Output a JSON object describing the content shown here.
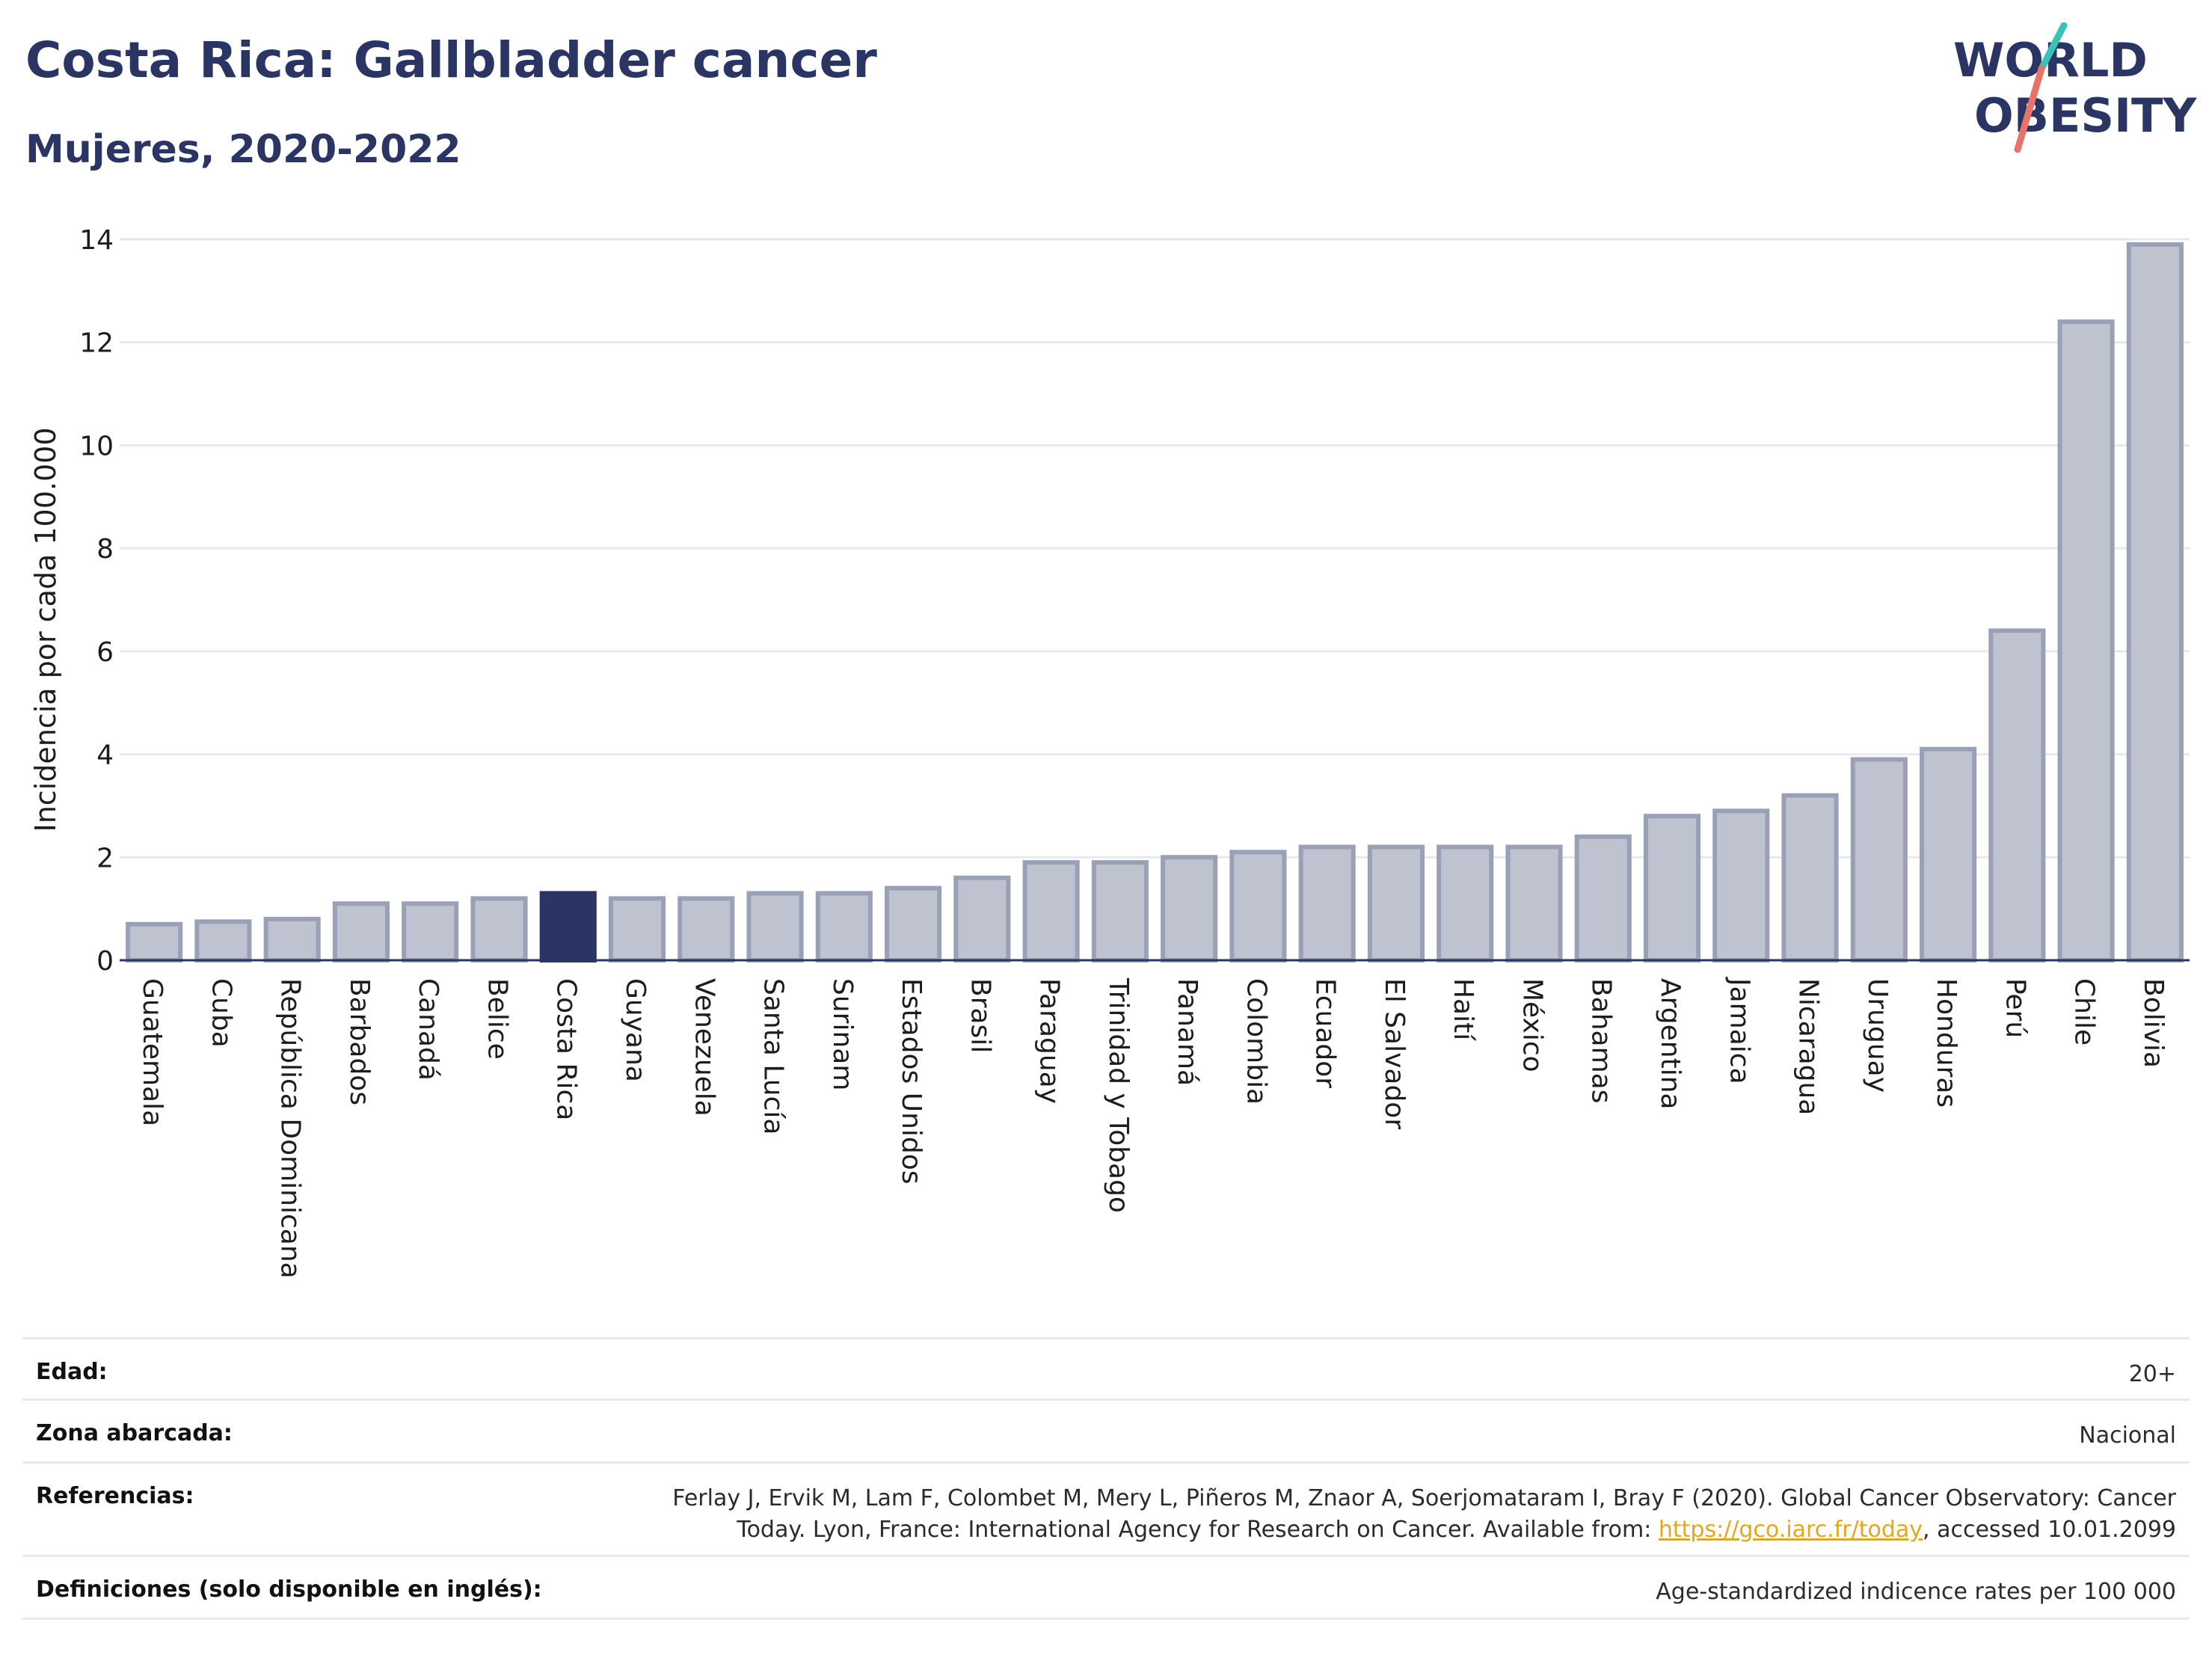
{
  "header": {
    "title": "Costa Rica: Gallbladder cancer",
    "subtitle": "Mujeres, 2020-2022"
  },
  "logo": {
    "line1": "WORLD",
    "line2": "OBESITY",
    "colors": {
      "text": "#2a3563",
      "slash_top": "#3cc0b8",
      "slash_bottom": "#e8736a"
    }
  },
  "chart_data": {
    "type": "bar",
    "ylabel": "Incidencia por cada 100.000",
    "ylim": [
      0,
      14
    ],
    "yticks": [
      0,
      2,
      4,
      6,
      8,
      10,
      12,
      14
    ],
    "grid": true,
    "highlight": "Costa Rica",
    "colors": {
      "bar": "#bfc3d0",
      "bar_border": "#9aa0b6",
      "highlight": "#2a3563",
      "grid": "#e6e9f0",
      "axis": "#2a3563"
    },
    "categories": [
      "Guatemala",
      "Cuba",
      "República Dominicana",
      "Barbados",
      "Canadá",
      "Belice",
      "Costa Rica",
      "Guyana",
      "Venezuela",
      "Santa Lucía",
      "Surinam",
      "Estados Unidos",
      "Brasil",
      "Paraguay",
      "Trinidad y Tobago",
      "Panamá",
      "Colombia",
      "Ecuador",
      "El Salvador",
      "Haití",
      "México",
      "Bahamas",
      "Argentina",
      "Jamaica",
      "Nicaragua",
      "Uruguay",
      "Honduras",
      "Perú",
      "Chile",
      "Bolivia"
    ],
    "values": [
      0.7,
      0.75,
      0.8,
      1.1,
      1.1,
      1.2,
      1.3,
      1.2,
      1.2,
      1.3,
      1.3,
      1.4,
      1.6,
      1.9,
      1.9,
      2.0,
      2.1,
      2.2,
      2.2,
      2.2,
      2.2,
      2.4,
      2.8,
      2.9,
      3.2,
      3.9,
      4.1,
      6.4,
      12.4,
      13.9
    ]
  },
  "meta": {
    "edad_label": "Edad:",
    "edad_value": "20+",
    "zona_label": "Zona abarcada:",
    "zona_value": "Nacional",
    "ref_label": "Referencias:",
    "ref_line1": "Ferlay J, Ervik M, Lam F, Colombet M, Mery L, Piñeros M, Znaor A, Soerjomataram I, Bray F (2020). Global Cancer Observatory: Cancer",
    "ref_line2_pre": "Today. Lyon, France: International Agency for Research on Cancer. Available from: ",
    "ref_link": "https://gco.iarc.fr/today",
    "ref_line2_post": ", accessed 10.01.2099",
    "def_label": "Definiciones (solo disponible en inglés):",
    "def_value": "Age-standardized indicence rates per 100 000"
  }
}
